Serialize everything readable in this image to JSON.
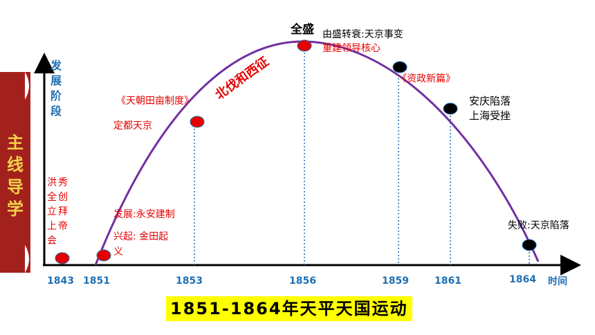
{
  "side_panel": {
    "chars": [
      "主",
      "线",
      "导",
      "学"
    ],
    "color": "#a3211c"
  },
  "y_axis": {
    "label_chars": [
      "发",
      "展",
      "阶",
      "段"
    ]
  },
  "x_axis": {
    "ticks": [
      "1843",
      "1851",
      "1853",
      "1856",
      "1859",
      "1861",
      "1864"
    ],
    "label": "时间"
  },
  "chart_data": {
    "type": "line",
    "x": [
      1851,
      1853,
      1856,
      1859,
      1861,
      1864
    ],
    "xlabel": "时间",
    "ylabel": "发展阶段",
    "points": [
      {
        "year": 1843,
        "color": "red"
      },
      {
        "year": 1851,
        "color": "red"
      },
      {
        "year": 1853,
        "color": "red"
      },
      {
        "year": 1856,
        "color": "red"
      },
      {
        "year": 1859,
        "color": "black"
      },
      {
        "year": 1861,
        "color": "black"
      },
      {
        "year": 1864,
        "color": "black"
      }
    ]
  },
  "annotations": {
    "hongxiuquan": [
      "洪",
      "秀",
      "全",
      "创",
      "立",
      "拜",
      "上",
      "帝",
      "会"
    ],
    "fazhan": "发展:永安建制",
    "xingqi": "兴起: 金田起",
    "xingqi_tail": "义",
    "tianchao": "《天朝田亩制度》",
    "dingdu": "定都天京",
    "beifa": "北伐和西征",
    "quansheng": "全盛",
    "youshengzhuanshuai": "由盛转衰:天京事变",
    "chongjian": "重建领导核心",
    "zizheng": "《资政新篇》",
    "anqing": "安庆陷落",
    "shanghai": "上海受挫",
    "shibai": "失败:天京陷落"
  },
  "bottom_title": {
    "numbers": "1851-1864",
    "text": "年天平天国运动"
  },
  "colors": {
    "red": "#e60000",
    "blue": "#1f6fb3",
    "curve": "#7030a0",
    "highlight": "#ffff00"
  }
}
